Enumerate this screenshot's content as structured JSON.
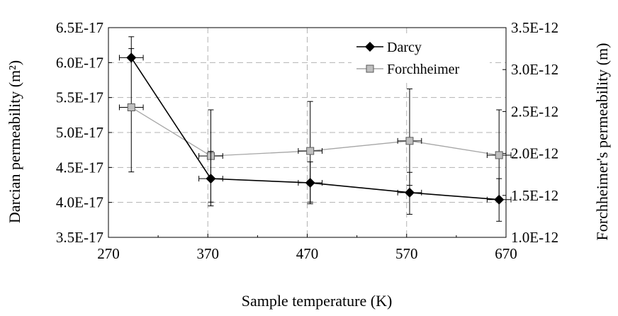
{
  "chart_data": {
    "type": "line",
    "xlabel": "Sample temperature (K)",
    "ylabel": "Darcian permeability (m²)",
    "y2label": "Forchheimer's permeability (m)",
    "xlim": [
      270,
      670
    ],
    "ylim": [
      3.5e-17,
      6.5e-17
    ],
    "y2lim": [
      1e-12,
      3.5e-12
    ],
    "grid": true,
    "legend_position": "top-right",
    "x_ticks": [
      "270",
      "370",
      "470",
      "570",
      "670"
    ],
    "y_ticks": [
      "3.5E-17",
      "4.0E-17",
      "4.5E-17",
      "5.0E-17",
      "5.5E-17",
      "6.0E-17",
      "6.5E-17"
    ],
    "y2_ticks": [
      "1.0E-12",
      "1.5E-12",
      "2.0E-12",
      "2.5E-12",
      "3.0E-12",
      "3.5E-12"
    ],
    "series": [
      {
        "name": "Darcy",
        "axis": "left",
        "marker": "diamond",
        "color": "#000000",
        "x": [
          293,
          373,
          473,
          573,
          663
        ],
        "y": [
          6.07e-17,
          4.34e-17,
          4.28e-17,
          4.14e-17,
          4.04e-17
        ],
        "x_err": 12,
        "y_err_low": [
          6.07e-17,
          3.95e-17,
          3.98e-17,
          3.83e-17,
          3.73e-17
        ],
        "y_err_high": [
          6.37e-17,
          4.73e-17,
          4.58e-17,
          4.43e-17,
          4.34e-17
        ]
      },
      {
        "name": "Forchheimer",
        "axis": "right",
        "marker": "square",
        "color": "#a6a6a6",
        "x": [
          293,
          373,
          473,
          573,
          663
        ],
        "y": [
          2.55e-12,
          1.97e-12,
          2.03e-12,
          2.15e-12,
          1.98e-12
        ],
        "x_err": 12,
        "y_err_low": [
          1.78e-12,
          1.42e-12,
          1.42e-12,
          1.62e-12,
          1.45e-12
        ],
        "y_err_high": [
          3.25e-12,
          2.52e-12,
          2.62e-12,
          2.77e-12,
          2.52e-12
        ]
      }
    ]
  }
}
